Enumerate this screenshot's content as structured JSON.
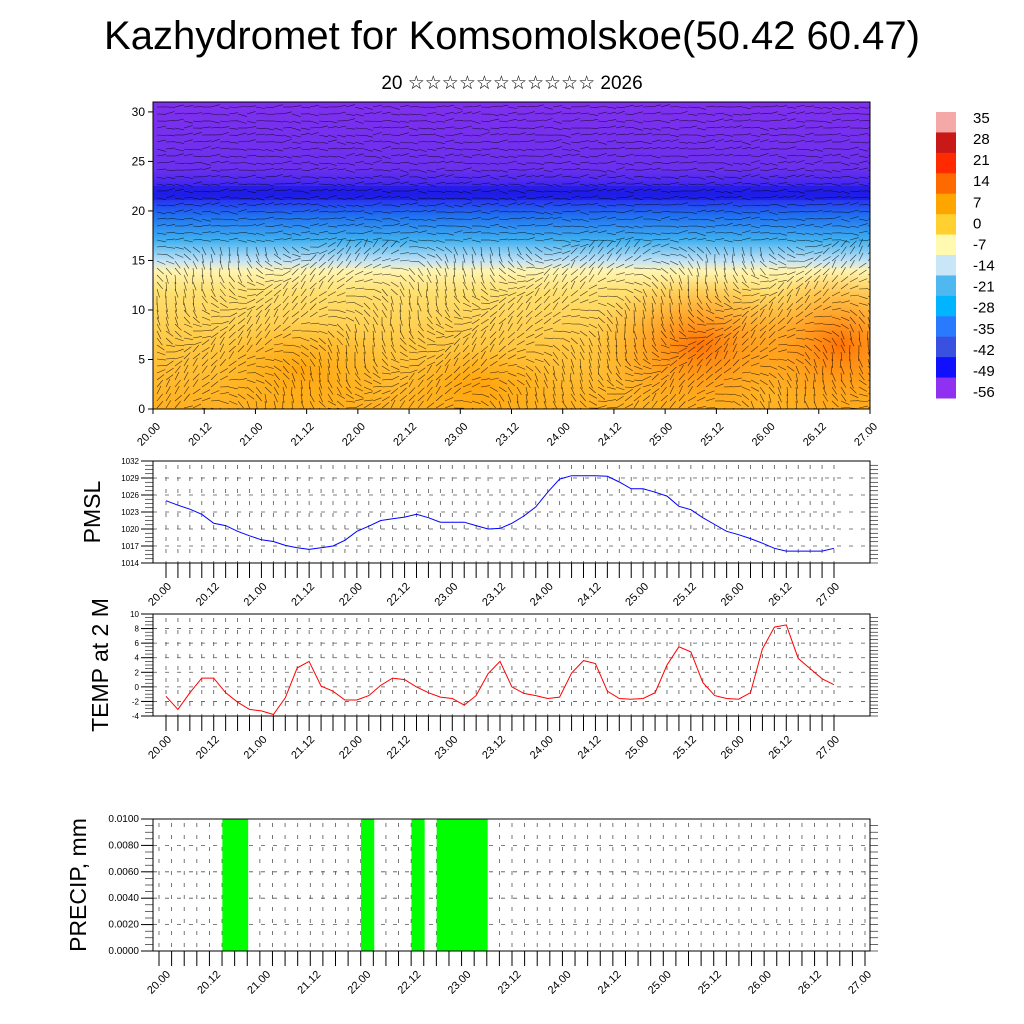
{
  "title": "Kazhydromet for Komsomolskoe(50.42 60.47)",
  "subtitle": "20 ☆☆☆☆☆☆☆☆☆☆☆ 2026",
  "chart_data": [
    {
      "type": "heatmap",
      "name": "vertical-section",
      "title": "",
      "xlabel": "",
      "ylabel": "",
      "x_ticks": [
        "20.00",
        "20.12",
        "21.00",
        "21.12",
        "22.00",
        "22.12",
        "23.00",
        "23.12",
        "24.00",
        "24.12",
        "25.00",
        "25.12",
        "26.00",
        "26.12",
        "27.00"
      ],
      "y_ticks": [
        "0",
        "5",
        "10",
        "15",
        "20",
        "25",
        "30"
      ],
      "ylim": [
        0,
        31
      ],
      "colorbar": {
        "labels": [
          "35",
          "28",
          "21",
          "14",
          "7",
          "0",
          "-7",
          "-14",
          "-21",
          "-28",
          "-35",
          "-42",
          "-49",
          "-56"
        ],
        "colors": [
          "#f4a8a8",
          "#c81818",
          "#ff2a00",
          "#ff6a00",
          "#ffa500",
          "#ffd030",
          "#fffab0",
          "#c8e6f8",
          "#50b8f0",
          "#00b4ff",
          "#2a7aff",
          "#3a50e0",
          "#1010ff",
          "#9030f0"
        ]
      },
      "overlay": "wind barbs"
    },
    {
      "type": "line",
      "name": "pmsl",
      "ylabel": "PMSL",
      "color": "#0000ff",
      "ylim": [
        1014,
        1032
      ],
      "y_ticks": [
        "1014",
        "1017",
        "1020",
        "1023",
        "1026",
        "1029",
        "1032"
      ],
      "x_ticks": [
        "20.00",
        "20.12",
        "21.00",
        "21.12",
        "22.00",
        "22.12",
        "23.00",
        "23.12",
        "24.00",
        "24.12",
        "25.00",
        "25.12",
        "26.00",
        "26.12",
        "27.00"
      ],
      "x_step_hours": 3,
      "values": [
        1025,
        1024.2,
        1023.5,
        1022.6,
        1021,
        1020.6,
        1019.6,
        1018.8,
        1018.1,
        1017.8,
        1017.1,
        1016.7,
        1016.4,
        1016.7,
        1017,
        1018,
        1019.6,
        1020.5,
        1021.5,
        1021.8,
        1022.1,
        1022.6,
        1022,
        1021.2,
        1021.2,
        1021.2,
        1020.6,
        1020,
        1020.1,
        1021,
        1022.3,
        1023.9,
        1026.5,
        1028.8,
        1029.4,
        1029.4,
        1029.4,
        1029.3,
        1028.3,
        1027.1,
        1027.1,
        1026.5,
        1025.8,
        1024,
        1023.4,
        1022,
        1020.8,
        1019.6,
        1019,
        1018.3,
        1017.5,
        1016.6,
        1016.1,
        1016.1,
        1016.1,
        1016.1,
        1016.6
      ]
    },
    {
      "type": "line",
      "name": "temp",
      "ylabel": "TEMP at 2 M",
      "color": "#ff0000",
      "ylim": [
        -4,
        10
      ],
      "y_ticks": [
        "-4",
        "-2",
        "0",
        "2",
        "4",
        "6",
        "8",
        "10"
      ],
      "x_ticks": [
        "20.00",
        "20.12",
        "21.00",
        "21.12",
        "22.00",
        "22.12",
        "23.00",
        "23.12",
        "24.00",
        "24.12",
        "25.00",
        "25.12",
        "26.00",
        "26.12",
        "27.00"
      ],
      "x_step_hours": 3,
      "values": [
        -1.3,
        -3.1,
        -0.8,
        1.2,
        1.2,
        -0.8,
        -2.1,
        -3.1,
        -3.3,
        -3.8,
        -1.5,
        2.6,
        3.5,
        0.1,
        -0.6,
        -1.8,
        -1.8,
        -1.2,
        0.2,
        1.2,
        1,
        0,
        -0.8,
        -1.4,
        -1.6,
        -2.5,
        -1.2,
        1.8,
        3.5,
        0,
        -0.9,
        -1.2,
        -1.6,
        -1.4,
        1.9,
        3.6,
        3.2,
        -0.6,
        -1.6,
        -1.7,
        -1.6,
        -0.8,
        3,
        5.5,
        4.8,
        0.6,
        -1.2,
        -1.6,
        -1.7,
        -0.8,
        5.2,
        8.2,
        8.5,
        3.9,
        2.5,
        1.1,
        0.3
      ]
    },
    {
      "type": "bar",
      "name": "precip",
      "ylabel": "PRECIP, mm",
      "color": "#00ff00",
      "ylim": [
        0,
        0.01
      ],
      "y_ticks": [
        "0.0000",
        "0.0020",
        "0.0040",
        "0.0060",
        "0.0080",
        "0.0100"
      ],
      "x_ticks": [
        "20.00",
        "20.12",
        "21.00",
        "21.12",
        "22.00",
        "22.12",
        "23.00",
        "23.12",
        "24.00",
        "24.12",
        "25.00",
        "25.12",
        "26.00",
        "26.12",
        "27.00"
      ],
      "x_step_hours": 3,
      "values": [
        0,
        0,
        0,
        0,
        0,
        0,
        0.01,
        0.01,
        0,
        0,
        0,
        0,
        0,
        0,
        0,
        0,
        0,
        0.01,
        0,
        0,
        0,
        0.01,
        0,
        0.01,
        0.01,
        0.01,
        0.01,
        0,
        0,
        0,
        0,
        0,
        0,
        0,
        0,
        0,
        0,
        0,
        0,
        0,
        0,
        0,
        0,
        0,
        0,
        0,
        0,
        0,
        0,
        0,
        0,
        0,
        0,
        0,
        0,
        0,
        0
      ]
    }
  ]
}
